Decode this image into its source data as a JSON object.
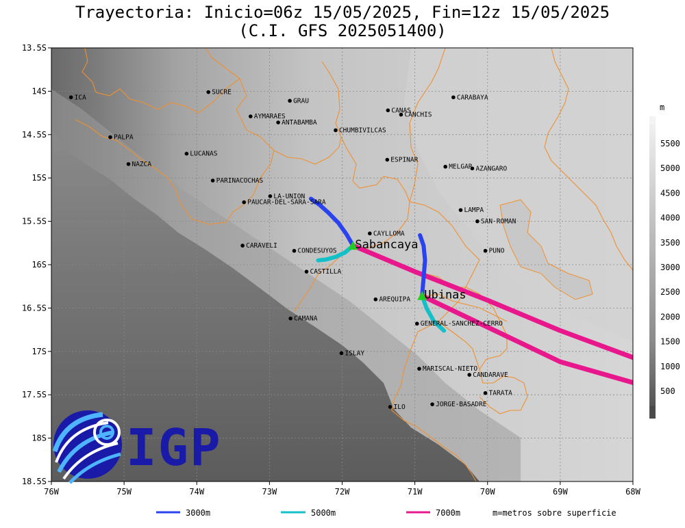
{
  "title": {
    "line1": "Trayectoria: Inicio=06z 15/05/2025, Fin=12z 15/05/2025",
    "line2": "(C.I. GFS 2025051400)"
  },
  "map": {
    "lon_range": [
      -76,
      -68
    ],
    "lat_range": [
      -18.5,
      -13.5
    ],
    "lon_ticks": [
      "76W",
      "75W",
      "74W",
      "73W",
      "72W",
      "71W",
      "70W",
      "69W",
      "68W"
    ],
    "lat_ticks": [
      "13.5S",
      "14S",
      "14.5S",
      "15S",
      "15.5S",
      "16S",
      "16.5S",
      "17S",
      "17.5S",
      "18S",
      "18.5S"
    ],
    "colorbar": {
      "unit": "m",
      "labels": [
        "500",
        "1000",
        "1500",
        "2000",
        "2500",
        "3000",
        "3500",
        "4000",
        "4500",
        "5000",
        "5500"
      ]
    },
    "places": [
      {
        "name": "ICA",
        "lon": -75.73,
        "lat": -14.07
      },
      {
        "name": "SUCRE",
        "lon": -73.84,
        "lat": -14.01
      },
      {
        "name": "GRAU",
        "lon": -72.72,
        "lat": -14.11
      },
      {
        "name": "CANAS",
        "lon": -71.37,
        "lat": -14.22
      },
      {
        "name": "CANCHIS",
        "lon": -71.19,
        "lat": -14.27
      },
      {
        "name": "CARABAYA",
        "lon": -70.47,
        "lat": -14.07
      },
      {
        "name": "AYMARAES",
        "lon": -73.26,
        "lat": -14.29
      },
      {
        "name": "ANTABAMBA",
        "lon": -72.88,
        "lat": -14.36
      },
      {
        "name": "CHUMBIVILCAS",
        "lon": -72.09,
        "lat": -14.45
      },
      {
        "name": "PALPA",
        "lon": -75.19,
        "lat": -14.53
      },
      {
        "name": "LUCANAS",
        "lon": -74.14,
        "lat": -14.72
      },
      {
        "name": "NAZCA",
        "lon": -74.94,
        "lat": -14.84
      },
      {
        "name": "ESPINAR",
        "lon": -71.38,
        "lat": -14.79
      },
      {
        "name": "MELGAR",
        "lon": -70.58,
        "lat": -14.87
      },
      {
        "name": "AZANGARO",
        "lon": -70.21,
        "lat": -14.89
      },
      {
        "name": "PARINACOCHAS",
        "lon": -73.78,
        "lat": -15.03
      },
      {
        "name": "LA-UNION",
        "lon": -72.99,
        "lat": -15.21
      },
      {
        "name": "PAUCAR-DEL-SARA-SARA",
        "lon": -73.35,
        "lat": -15.28
      },
      {
        "name": "LAMPA",
        "lon": -70.37,
        "lat": -15.37
      },
      {
        "name": "SAN-ROMAN",
        "lon": -70.14,
        "lat": -15.5
      },
      {
        "name": "CAYLLOMA",
        "lon": -71.62,
        "lat": -15.64
      },
      {
        "name": "CARAVELI",
        "lon": -73.37,
        "lat": -15.78
      },
      {
        "name": "CONDESUYOS",
        "lon": -72.66,
        "lat": -15.84
      },
      {
        "name": "PUNO",
        "lon": -70.03,
        "lat": -15.84
      },
      {
        "name": "CASTILLA",
        "lon": -72.49,
        "lat": -16.08
      },
      {
        "name": "AREQUIPA",
        "lon": -71.54,
        "lat": -16.4
      },
      {
        "name": "GENERAL-SANCHEZ-CERRO",
        "lon": -70.97,
        "lat": -16.68
      },
      {
        "name": "CAMANA",
        "lon": -72.71,
        "lat": -16.62
      },
      {
        "name": "ISLAY",
        "lon": -72.01,
        "lat": -17.02
      },
      {
        "name": "MARISCAL-NIETO",
        "lon": -70.94,
        "lat": -17.2
      },
      {
        "name": "CANDARAVE",
        "lon": -70.25,
        "lat": -17.27
      },
      {
        "name": "TARATA",
        "lon": -70.03,
        "lat": -17.48
      },
      {
        "name": "ILO",
        "lon": -71.34,
        "lat": -17.64
      },
      {
        "name": "JORGE-BASADRE",
        "lon": -70.76,
        "lat": -17.61
      }
    ],
    "volcanoes": [
      {
        "name": "Sabancaya",
        "lon": -71.85,
        "lat": -15.78
      },
      {
        "name": "Ubinas",
        "lon": -70.9,
        "lat": -16.36
      }
    ],
    "colors": {
      "t3000": "#2a42f0",
      "t5000": "#14c0c8",
      "t7000": "#e8188c",
      "border": "#f09030",
      "volcano": "#22cc22"
    },
    "trajectories": [
      {
        "volcano": "Sabancaya",
        "level": "3000m",
        "points": [
          [
            -71.85,
            -15.78
          ],
          [
            -71.94,
            -15.65
          ],
          [
            -72.05,
            -15.52
          ],
          [
            -72.19,
            -15.4
          ],
          [
            -72.31,
            -15.31
          ],
          [
            -72.43,
            -15.24
          ]
        ]
      },
      {
        "volcano": "Sabancaya",
        "level": "5000m",
        "points": [
          [
            -71.85,
            -15.78
          ],
          [
            -71.96,
            -15.86
          ],
          [
            -72.09,
            -15.91
          ],
          [
            -72.22,
            -15.94
          ],
          [
            -72.33,
            -15.95
          ]
        ]
      },
      {
        "volcano": "Sabancaya",
        "level": "7000m",
        "points": [
          [
            -71.85,
            -15.78
          ],
          [
            -71.0,
            -16.08
          ],
          [
            -70.0,
            -16.41
          ],
          [
            -69.0,
            -16.76
          ],
          [
            -68.0,
            -17.07
          ]
        ]
      },
      {
        "volcano": "Ubinas",
        "level": "3000m",
        "points": [
          [
            -70.9,
            -16.36
          ],
          [
            -70.88,
            -16.15
          ],
          [
            -70.86,
            -15.95
          ],
          [
            -70.88,
            -15.78
          ],
          [
            -70.93,
            -15.66
          ]
        ]
      },
      {
        "volcano": "Ubinas",
        "level": "5000m",
        "points": [
          [
            -70.9,
            -16.36
          ],
          [
            -70.84,
            -16.5
          ],
          [
            -70.74,
            -16.65
          ],
          [
            -70.6,
            -16.76
          ]
        ]
      },
      {
        "volcano": "Ubinas",
        "level": "7000m",
        "points": [
          [
            -70.9,
            -16.36
          ],
          [
            -70.0,
            -16.72
          ],
          [
            -69.0,
            -17.12
          ],
          [
            -68.0,
            -17.36
          ]
        ]
      }
    ]
  },
  "legend": {
    "items": [
      {
        "label": "3000m",
        "color": "#2a42f0"
      },
      {
        "label": "5000m",
        "color": "#14c0c8"
      },
      {
        "label": "7000m",
        "color": "#e8188c"
      }
    ],
    "note": "m=metros sobre superficie"
  },
  "logo": {
    "text": "IGP",
    "color": "#1a1aa8"
  }
}
